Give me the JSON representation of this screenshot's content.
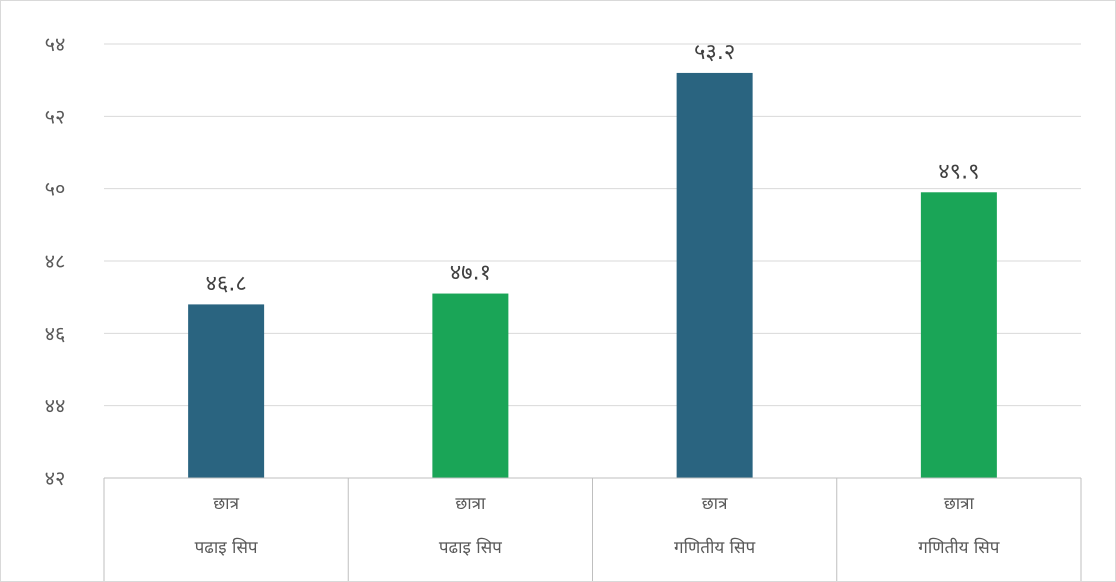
{
  "chart_data": {
    "type": "bar",
    "ylim": [
      42,
      54
    ],
    "y_ticks": [
      {
        "value": 42,
        "label": "४२"
      },
      {
        "value": 44,
        "label": "४४"
      },
      {
        "value": 46,
        "label": "४६"
      },
      {
        "value": 48,
        "label": "४८"
      },
      {
        "value": 50,
        "label": "५०"
      },
      {
        "value": 52,
        "label": "५२"
      },
      {
        "value": 54,
        "label": "५४"
      }
    ],
    "grid": true,
    "legend": "none",
    "categories": [
      {
        "sub": "छात्र",
        "group": "पढाइ सिप"
      },
      {
        "sub": "छात्रा",
        "group": "पढाइ सिप"
      },
      {
        "sub": "छात्र",
        "group": "गणितीय सिप"
      },
      {
        "sub": "छात्रा",
        "group": "गणितीय सिप"
      }
    ],
    "values": [
      46.8,
      47.1,
      53.2,
      49.9
    ],
    "value_labels": [
      "४६.८",
      "४७.१",
      "५३.२",
      "४९.९"
    ],
    "bar_colors": [
      "#2a6480",
      "#1aa557",
      "#2a6480",
      "#1aa557"
    ]
  }
}
